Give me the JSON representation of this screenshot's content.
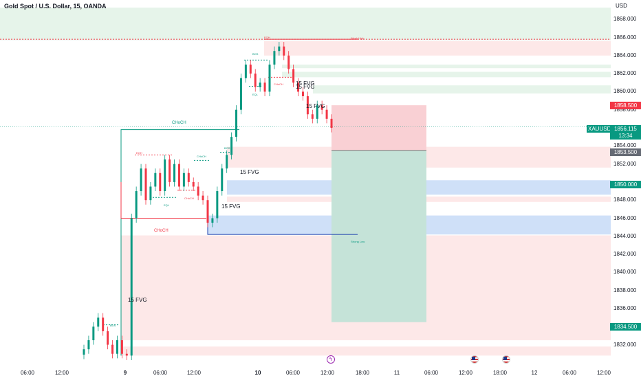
{
  "header": {
    "title": "Gold Spot / U.S. Dollar, 15, OANDA",
    "currency": "USD"
  },
  "price_axis": [
    "1868.000",
    "1866.000",
    "1864.000",
    "1862.000",
    "1860.000",
    "1858.000",
    "1854.000",
    "1852.000",
    "1848.000",
    "1846.000",
    "1844.000",
    "1842.000",
    "1840.000",
    "1838.000",
    "1836.000",
    "1834.000",
    "1832.000"
  ],
  "time_axis": [
    {
      "label": "06:00",
      "bold": false
    },
    {
      "label": "12:00",
      "bold": false
    },
    {
      "label": "9",
      "bold": true
    },
    {
      "label": "06:00",
      "bold": false
    },
    {
      "label": "12:00",
      "bold": false
    },
    {
      "label": "10",
      "bold": true
    },
    {
      "label": "06:00",
      "bold": false
    },
    {
      "label": "12:00",
      "bold": false
    },
    {
      "label": "18:00",
      "bold": false
    },
    {
      "label": "11",
      "bold": false
    },
    {
      "label": "06:00",
      "bold": false
    },
    {
      "label": "12:00",
      "bold": false
    },
    {
      "label": "18:00",
      "bold": false
    },
    {
      "label": "12",
      "bold": false
    },
    {
      "label": "06:00",
      "bold": false
    },
    {
      "label": "12:00",
      "bold": false
    }
  ],
  "badges": {
    "stop": "1858.500",
    "symbol": "XAUUSD",
    "current": "1856.115",
    "countdown": "13:34",
    "entry": "1853.500",
    "level": "1850.000",
    "target": "1834.500"
  },
  "annotations": {
    "fvg": "15 FVG",
    "choch": "CHoCH",
    "bos": "BOS",
    "eqh": "EQH",
    "eql": "EQL",
    "week_high": "Week High",
    "strong_low": "Strong Low"
  },
  "colors": {
    "up": "#089981",
    "down": "#f23645",
    "bearish_zone": "#fde8e8",
    "bullish_zone": "#e6f4ea",
    "blue_fvg": "#cfe0f8",
    "stop_zone": "#f9d0d4",
    "target_zone": "#c5e3d8"
  },
  "chart_data": {
    "type": "candlestick",
    "instrument": "Gold Spot / U.S. Dollar",
    "timeframe": "15",
    "current_price": 1856.115,
    "ylim": [
      1830.8,
      1869.3
    ],
    "position": {
      "entry": 1853.5,
      "stop": 1858.5,
      "target": 1834.5
    },
    "close_path": [
      1831.5,
      1832.5,
      1834,
      1835,
      1833.5,
      1832,
      1831,
      1832.5,
      1831,
      1830.8,
      1846,
      1849,
      1851.5,
      1848,
      1849.5,
      1851,
      1849,
      1852.5,
      1850,
      1852,
      1849.5,
      1851,
      1850,
      1849.5,
      1848.5,
      1848,
      1845.5,
      1846,
      1849,
      1851.5,
      1853,
      1855,
      1858,
      1861.5,
      1863,
      1862,
      1860.5,
      1861,
      1860,
      1863,
      1864.5,
      1865,
      1864,
      1862.5,
      1861,
      1860,
      1859.5,
      1857.5,
      1857,
      1858.5,
      1858,
      1857,
      1856
    ]
  }
}
